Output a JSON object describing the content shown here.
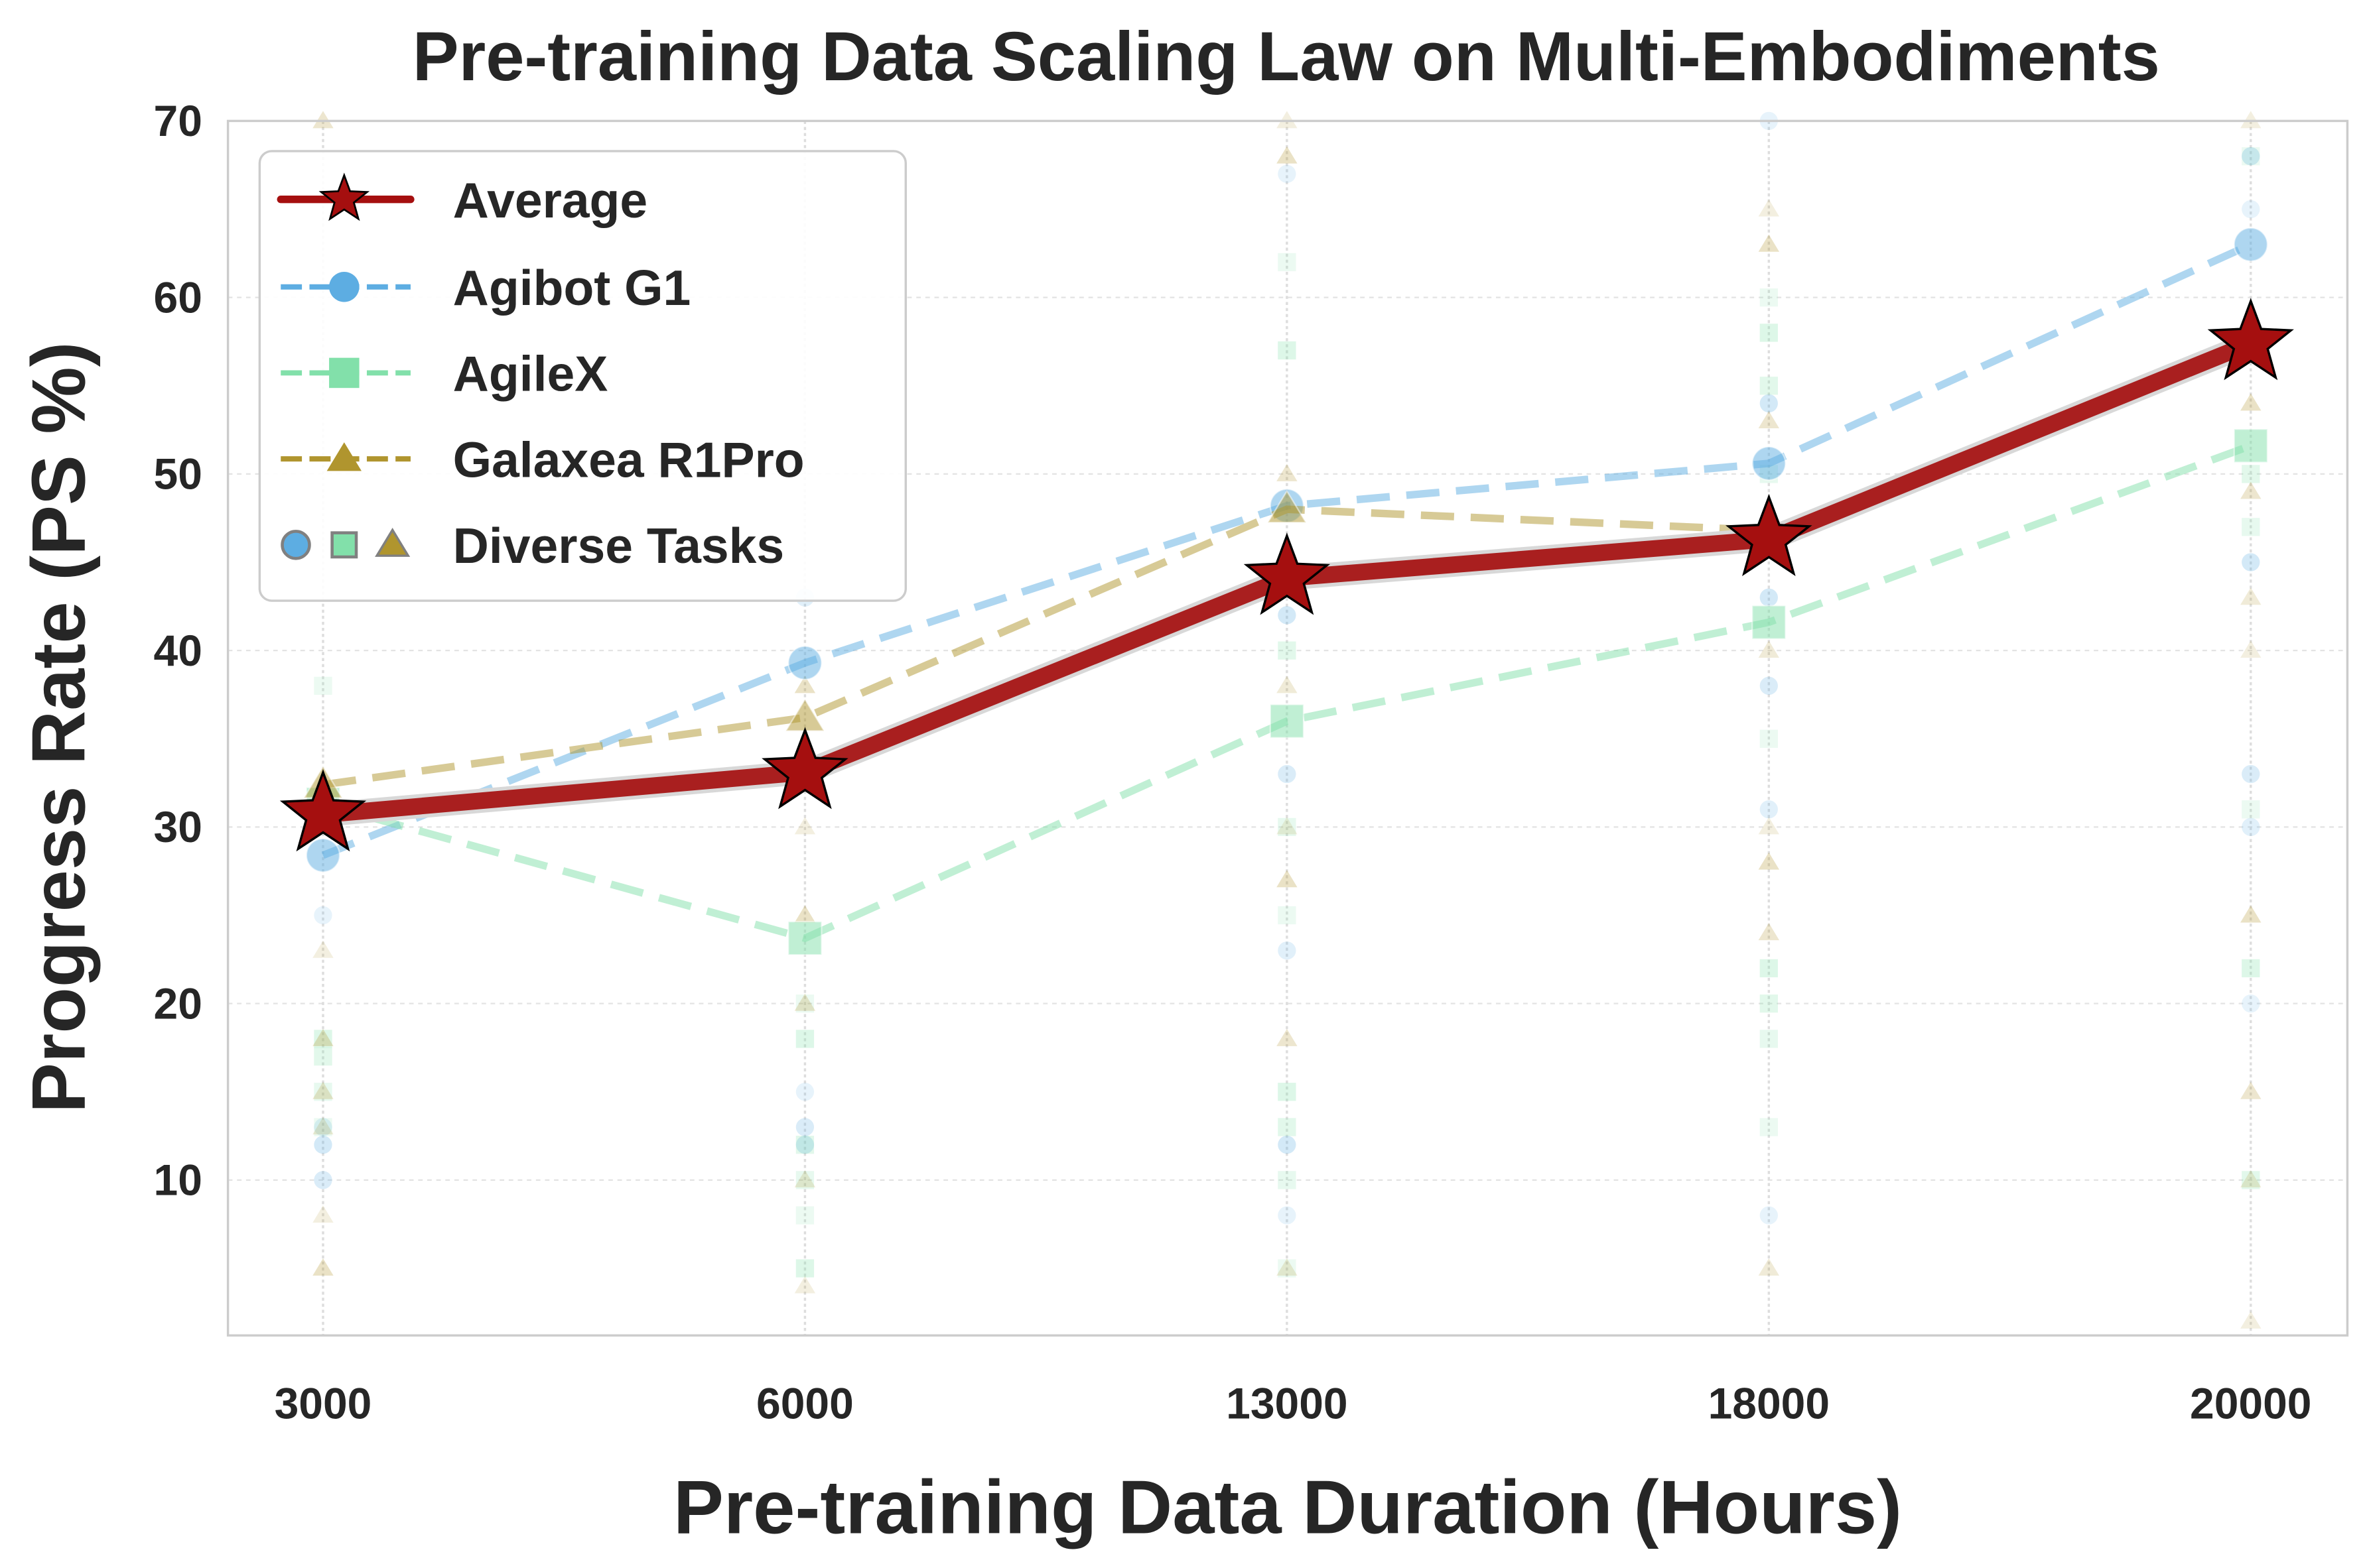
{
  "chart_data": {
    "type": "line",
    "title": "Pre-training Data Scaling Law on Multi-Embodiments",
    "xlabel": "Pre-training Data Duration (Hours)",
    "ylabel": "Progress Rate (PS %)",
    "categories": [
      "3000",
      "6000",
      "13000",
      "18000",
      "20000"
    ],
    "yticks": [
      10,
      20,
      30,
      40,
      50,
      60,
      70
    ],
    "ylim": [
      1.2,
      70
    ],
    "grid": true,
    "legend_position": "top-left",
    "series": [
      {
        "name": "Average",
        "color": "#a50f0f",
        "marker": "star",
        "style": "solid",
        "values": [
          30.7,
          33.1,
          44.1,
          46.3,
          57.4
        ]
      },
      {
        "name": "Agibot G1",
        "color": "#5dade2",
        "marker": "circle",
        "style": "dashed",
        "values": [
          28.4,
          39.3,
          48.2,
          50.6,
          63.0
        ]
      },
      {
        "name": "AgileX",
        "color": "#82e0aa",
        "marker": "square",
        "style": "dashed",
        "values": [
          31.3,
          23.7,
          36.0,
          41.6,
          51.6
        ]
      },
      {
        "name": "Galaxea R1Pro",
        "color": "#b0952e",
        "marker": "triangle",
        "style": "dashed",
        "values": [
          32.4,
          36.2,
          48.0,
          46.8,
          57.6
        ]
      }
    ],
    "diverse_tasks": {
      "label": "Diverse Tasks",
      "Agibot G1": [
        [
          25,
          12,
          10,
          13
        ],
        [
          15,
          12,
          13,
          43
        ],
        [
          67,
          42,
          33,
          23,
          8,
          12
        ],
        [
          70,
          54,
          38,
          31,
          8,
          43
        ],
        [
          65,
          45,
          33,
          30,
          20,
          68,
          57
        ]
      ],
      "AgileX": [
        [
          38,
          18,
          17,
          15,
          13
        ],
        [
          20,
          18,
          12,
          10,
          8,
          5
        ],
        [
          62,
          57,
          40,
          30,
          25,
          15,
          13,
          10,
          5
        ],
        [
          60,
          58,
          55,
          50,
          35,
          22,
          20,
          18,
          13
        ],
        [
          68,
          58,
          50,
          47,
          31,
          22,
          10
        ]
      ],
      "Galaxea R1Pro": [
        [
          23,
          18,
          15,
          13,
          8,
          5,
          70
        ],
        [
          30,
          25,
          20,
          10,
          4,
          38
        ],
        [
          70,
          68,
          50,
          38,
          30,
          27,
          18,
          5
        ],
        [
          65,
          63,
          53,
          40,
          30,
          28,
          24,
          5
        ],
        [
          70,
          54,
          49,
          43,
          40,
          25,
          15,
          10,
          2
        ]
      ]
    }
  }
}
